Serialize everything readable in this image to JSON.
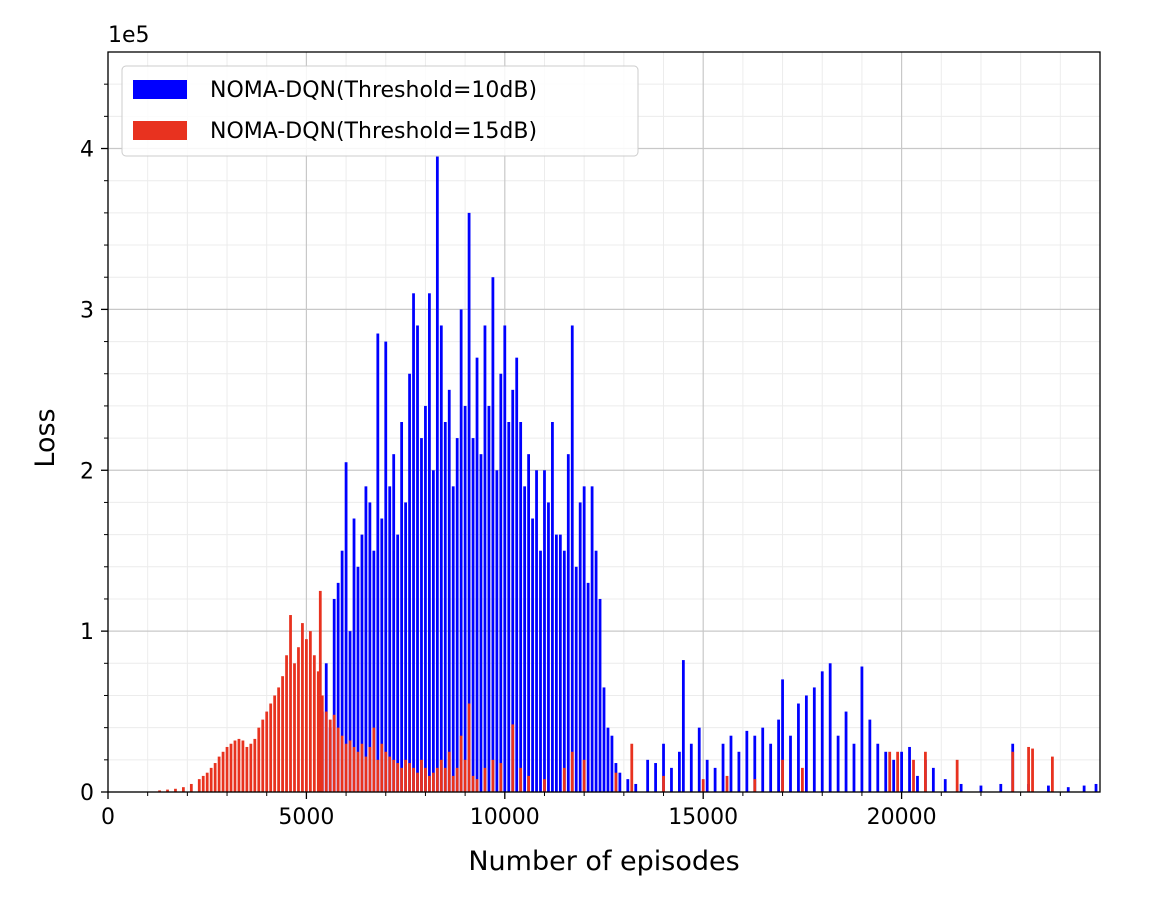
{
  "chart_data": {
    "type": "bar",
    "xlabel": "Number of episodes",
    "ylabel": "Loss",
    "y_offset_label": "1e5",
    "xlim": [
      0,
      25000
    ],
    "ylim": [
      0,
      4.6
    ],
    "x_ticks": [
      0,
      5000,
      10000,
      15000,
      20000
    ],
    "x_tick_labels": [
      "0",
      "5000",
      "10000",
      "15000",
      "20000"
    ],
    "y_ticks": [
      0,
      1,
      2,
      3,
      4
    ],
    "y_tick_labels": [
      "0",
      "1",
      "2",
      "3",
      "4"
    ],
    "grid": true,
    "minor_grid": true,
    "legend_position": "top-left",
    "series": [
      {
        "name": "NOMA-DQN(Threshold=10dB)",
        "color": "#0000ff",
        "points": [
          [
            5400,
            0.5
          ],
          [
            5500,
            0.8
          ],
          [
            5600,
            0.4
          ],
          [
            5700,
            1.2
          ],
          [
            5800,
            1.3
          ],
          [
            5900,
            1.5
          ],
          [
            6000,
            2.05
          ],
          [
            6100,
            1.0
          ],
          [
            6200,
            1.7
          ],
          [
            6300,
            1.4
          ],
          [
            6400,
            1.6
          ],
          [
            6500,
            1.9
          ],
          [
            6600,
            1.8
          ],
          [
            6700,
            1.5
          ],
          [
            6800,
            2.85
          ],
          [
            6900,
            1.7
          ],
          [
            7000,
            2.8
          ],
          [
            7100,
            1.9
          ],
          [
            7200,
            2.1
          ],
          [
            7300,
            1.6
          ],
          [
            7400,
            2.3
          ],
          [
            7500,
            1.8
          ],
          [
            7600,
            2.6
          ],
          [
            7700,
            3.1
          ],
          [
            7800,
            2.9
          ],
          [
            7900,
            2.2
          ],
          [
            8000,
            2.4
          ],
          [
            8100,
            3.1
          ],
          [
            8200,
            2.0
          ],
          [
            8300,
            3.95
          ],
          [
            8400,
            2.9
          ],
          [
            8500,
            2.3
          ],
          [
            8600,
            2.5
          ],
          [
            8700,
            1.9
          ],
          [
            8800,
            2.2
          ],
          [
            8900,
            3.0
          ],
          [
            9000,
            2.4
          ],
          [
            9100,
            3.6
          ],
          [
            9200,
            2.2
          ],
          [
            9300,
            2.7
          ],
          [
            9400,
            2.1
          ],
          [
            9500,
            2.9
          ],
          [
            9600,
            2.4
          ],
          [
            9700,
            3.2
          ],
          [
            9800,
            2.0
          ],
          [
            9900,
            2.6
          ],
          [
            10000,
            2.9
          ],
          [
            10100,
            2.3
          ],
          [
            10200,
            2.5
          ],
          [
            10300,
            2.7
          ],
          [
            10400,
            2.3
          ],
          [
            10500,
            1.9
          ],
          [
            10600,
            2.1
          ],
          [
            10700,
            1.7
          ],
          [
            10800,
            2.0
          ],
          [
            10900,
            1.5
          ],
          [
            11000,
            2.0
          ],
          [
            11100,
            1.8
          ],
          [
            11200,
            2.3
          ],
          [
            11300,
            1.6
          ],
          [
            11400,
            1.6
          ],
          [
            11500,
            1.5
          ],
          [
            11600,
            2.1
          ],
          [
            11700,
            2.9
          ],
          [
            11800,
            1.4
          ],
          [
            11900,
            1.8
          ],
          [
            12000,
            1.9
          ],
          [
            12100,
            1.3
          ],
          [
            12200,
            1.9
          ],
          [
            12300,
            1.5
          ],
          [
            12400,
            1.2
          ],
          [
            12500,
            0.65
          ],
          [
            12600,
            0.4
          ],
          [
            12700,
            0.35
          ],
          [
            12800,
            0.18
          ],
          [
            12900,
            0.12
          ],
          [
            13100,
            0.08
          ],
          [
            13300,
            0.05
          ],
          [
            13600,
            0.2
          ],
          [
            13800,
            0.18
          ],
          [
            14000,
            0.3
          ],
          [
            14200,
            0.15
          ],
          [
            14400,
            0.25
          ],
          [
            14500,
            0.82
          ],
          [
            14700,
            0.3
          ],
          [
            14900,
            0.4
          ],
          [
            15100,
            0.2
          ],
          [
            15300,
            0.15
          ],
          [
            15500,
            0.3
          ],
          [
            15700,
            0.35
          ],
          [
            15900,
            0.25
          ],
          [
            16100,
            0.38
          ],
          [
            16300,
            0.35
          ],
          [
            16500,
            0.4
          ],
          [
            16700,
            0.3
          ],
          [
            16900,
            0.45
          ],
          [
            17000,
            0.7
          ],
          [
            17200,
            0.35
          ],
          [
            17400,
            0.55
          ],
          [
            17600,
            0.6
          ],
          [
            17800,
            0.65
          ],
          [
            18000,
            0.75
          ],
          [
            18200,
            0.8
          ],
          [
            18400,
            0.35
          ],
          [
            18600,
            0.5
          ],
          [
            18800,
            0.3
          ],
          [
            19000,
            0.78
          ],
          [
            19200,
            0.45
          ],
          [
            19400,
            0.3
          ],
          [
            19600,
            0.25
          ],
          [
            19800,
            0.2
          ],
          [
            20000,
            0.25
          ],
          [
            20200,
            0.28
          ],
          [
            20400,
            0.1
          ],
          [
            20600,
            0.2
          ],
          [
            20800,
            0.15
          ],
          [
            21100,
            0.08
          ],
          [
            21500,
            0.05
          ],
          [
            22000,
            0.04
          ],
          [
            22500,
            0.05
          ],
          [
            22800,
            0.3
          ],
          [
            23200,
            0.05
          ],
          [
            23700,
            0.04
          ],
          [
            24200,
            0.03
          ],
          [
            24600,
            0.04
          ],
          [
            24900,
            0.05
          ]
        ]
      },
      {
        "name": "NOMA-DQN(Threshold=15dB)",
        "color": "#e8321f",
        "points": [
          [
            1300,
            0.01
          ],
          [
            1500,
            0.015
          ],
          [
            1700,
            0.02
          ],
          [
            1900,
            0.03
          ],
          [
            2100,
            0.05
          ],
          [
            2300,
            0.08
          ],
          [
            2400,
            0.1
          ],
          [
            2500,
            0.12
          ],
          [
            2600,
            0.15
          ],
          [
            2700,
            0.18
          ],
          [
            2800,
            0.22
          ],
          [
            2900,
            0.25
          ],
          [
            3000,
            0.28
          ],
          [
            3100,
            0.3
          ],
          [
            3200,
            0.32
          ],
          [
            3300,
            0.33
          ],
          [
            3400,
            0.32
          ],
          [
            3500,
            0.28
          ],
          [
            3600,
            0.3
          ],
          [
            3700,
            0.33
          ],
          [
            3800,
            0.4
          ],
          [
            3900,
            0.45
          ],
          [
            4000,
            0.5
          ],
          [
            4100,
            0.55
          ],
          [
            4200,
            0.6
          ],
          [
            4300,
            0.65
          ],
          [
            4400,
            0.72
          ],
          [
            4500,
            0.85
          ],
          [
            4600,
            1.1
          ],
          [
            4700,
            0.8
          ],
          [
            4800,
            0.9
          ],
          [
            4900,
            1.05
          ],
          [
            5000,
            0.95
          ],
          [
            5100,
            1.0
          ],
          [
            5200,
            0.85
          ],
          [
            5300,
            0.75
          ],
          [
            5350,
            1.25
          ],
          [
            5400,
            0.6
          ],
          [
            5500,
            0.5
          ],
          [
            5600,
            0.45
          ],
          [
            5700,
            0.48
          ],
          [
            5800,
            0.4
          ],
          [
            5900,
            0.35
          ],
          [
            6000,
            0.3
          ],
          [
            6100,
            0.32
          ],
          [
            6200,
            0.28
          ],
          [
            6300,
            0.25
          ],
          [
            6400,
            0.3
          ],
          [
            6500,
            0.22
          ],
          [
            6600,
            0.28
          ],
          [
            6700,
            0.4
          ],
          [
            6800,
            0.2
          ],
          [
            6900,
            0.3
          ],
          [
            7000,
            0.25
          ],
          [
            7100,
            0.22
          ],
          [
            7200,
            0.2
          ],
          [
            7300,
            0.18
          ],
          [
            7400,
            0.15
          ],
          [
            7500,
            0.2
          ],
          [
            7600,
            0.18
          ],
          [
            7700,
            0.15
          ],
          [
            7800,
            0.12
          ],
          [
            7900,
            0.2
          ],
          [
            8000,
            0.15
          ],
          [
            8100,
            0.1
          ],
          [
            8200,
            0.12
          ],
          [
            8300,
            0.15
          ],
          [
            8400,
            0.2
          ],
          [
            8500,
            0.15
          ],
          [
            8600,
            0.25
          ],
          [
            8700,
            0.1
          ],
          [
            8800,
            0.15
          ],
          [
            8900,
            0.35
          ],
          [
            9000,
            0.2
          ],
          [
            9100,
            0.55
          ],
          [
            9200,
            0.1
          ],
          [
            9300,
            0.08
          ],
          [
            9500,
            0.15
          ],
          [
            9700,
            0.2
          ],
          [
            9900,
            0.18
          ],
          [
            10200,
            0.42
          ],
          [
            10400,
            0.15
          ],
          [
            10600,
            0.1
          ],
          [
            11000,
            0.08
          ],
          [
            11500,
            0.15
          ],
          [
            11700,
            0.25
          ],
          [
            12000,
            0.2
          ],
          [
            12800,
            0.12
          ],
          [
            13200,
            0.3
          ],
          [
            14000,
            0.1
          ],
          [
            15000,
            0.08
          ],
          [
            15600,
            0.1
          ],
          [
            16300,
            0.08
          ],
          [
            17000,
            0.2
          ],
          [
            17500,
            0.15
          ],
          [
            19700,
            0.25
          ],
          [
            19900,
            0.25
          ],
          [
            20300,
            0.2
          ],
          [
            20600,
            0.25
          ],
          [
            21400,
            0.2
          ],
          [
            22800,
            0.25
          ],
          [
            23200,
            0.28
          ],
          [
            23300,
            0.27
          ],
          [
            23800,
            0.22
          ]
        ]
      }
    ]
  }
}
